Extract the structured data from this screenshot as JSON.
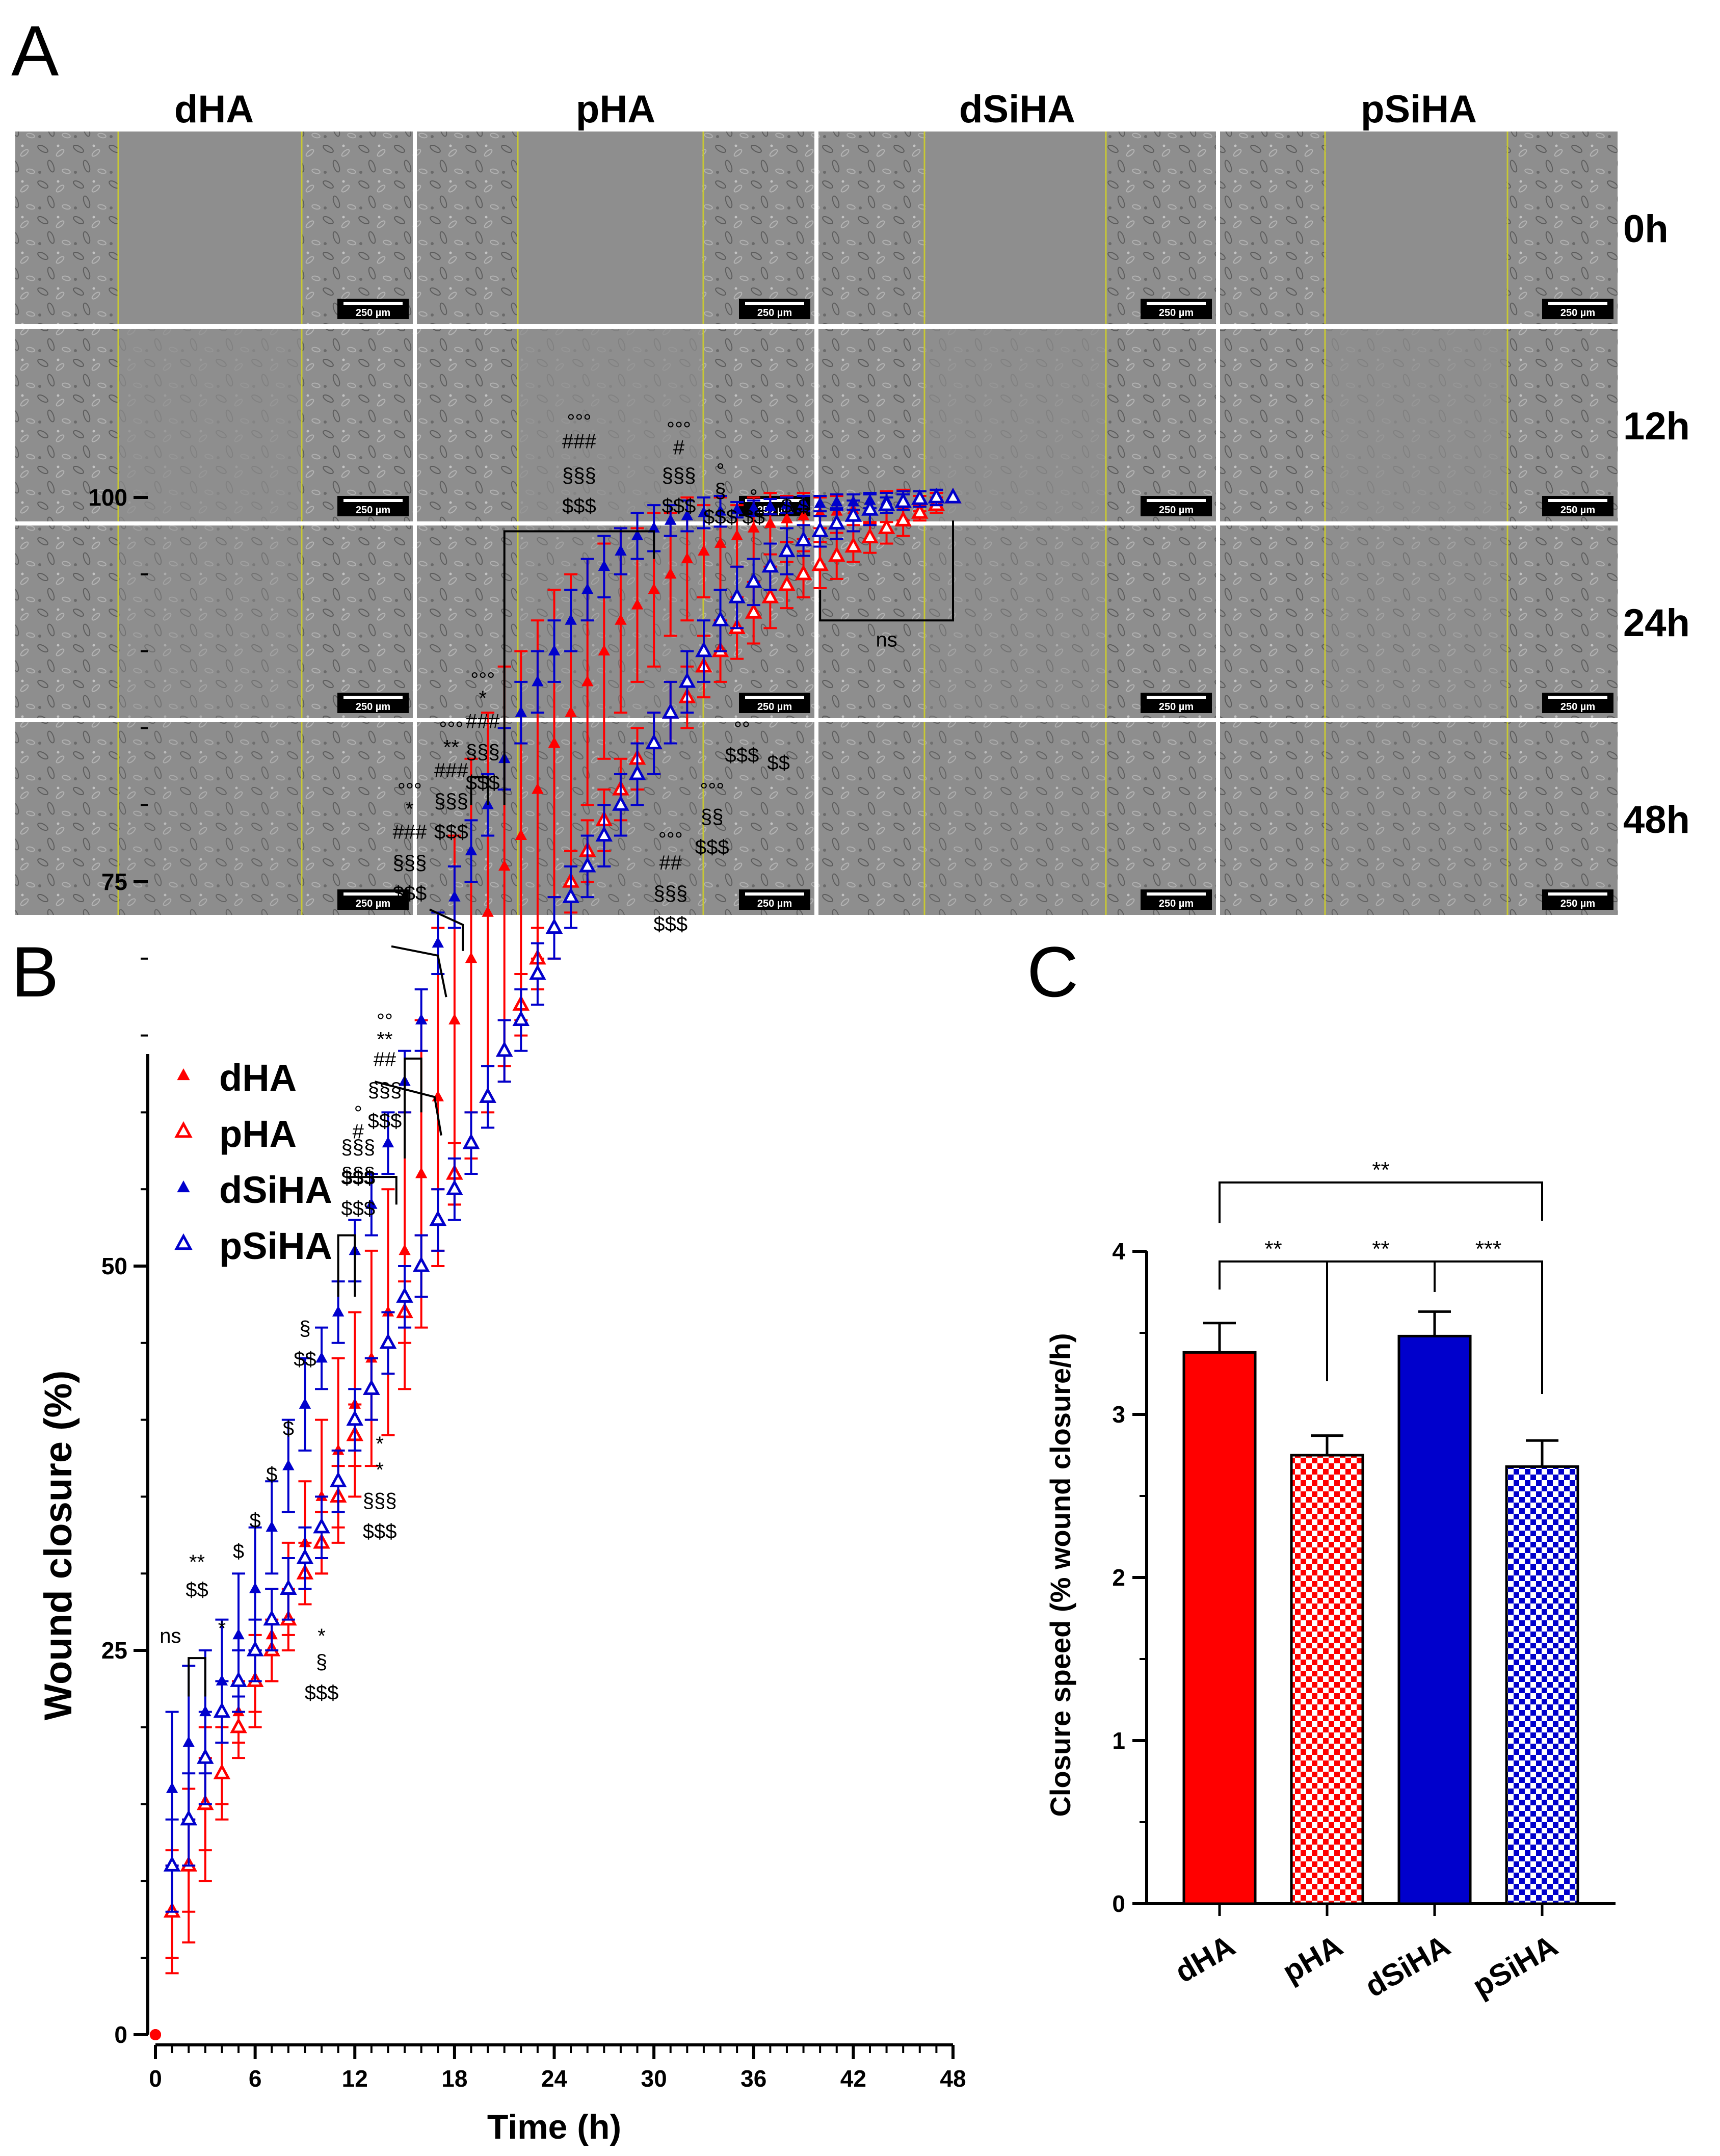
{
  "panel_a": {
    "label": "A",
    "columns": [
      "dHA",
      "pHA",
      "dSiHA",
      "pSiHA"
    ],
    "rows": [
      "0h",
      "12h",
      "24h",
      "48h"
    ],
    "scale_bar_label": "250 µm"
  },
  "panel_b": {
    "label": "B"
  },
  "panel_c": {
    "label": "C"
  },
  "colors": {
    "red": "#ff0000",
    "blue": "#0000cc"
  },
  "chart_data": [
    {
      "type": "scatter",
      "title": "",
      "xlabel": "Time (h)",
      "ylabel": "Wound closure (%)",
      "xlim": [
        0,
        48
      ],
      "ylim": [
        0,
        105
      ],
      "xticks": [
        "0",
        "6",
        "12",
        "18",
        "24",
        "30",
        "36",
        "42",
        "48"
      ],
      "yticks": [
        "0",
        "25",
        "50",
        "75",
        "100"
      ],
      "legend": [
        "dHA",
        "pHA",
        "dSiHA",
        "pSiHA"
      ],
      "legend_position": "top-left",
      "x": [
        0,
        1,
        2,
        3,
        4,
        5,
        6,
        7,
        8,
        9,
        10,
        11,
        12,
        13,
        14,
        15,
        16,
        17,
        18,
        19,
        20,
        21,
        22,
        23,
        24,
        25,
        26,
        27,
        28,
        29,
        30,
        31,
        32,
        33,
        34,
        35,
        36,
        37,
        38,
        39,
        40,
        41,
        42,
        43,
        44,
        45,
        46,
        47,
        48
      ],
      "series": [
        {
          "name": "dHA",
          "marker": "filled-triangle",
          "color": "#ff0000",
          "values": [
            0,
            8,
            11,
            15,
            17,
            21,
            23,
            26,
            29,
            32,
            35,
            38,
            41,
            44,
            47,
            51,
            56,
            61,
            66,
            70,
            73,
            76,
            78,
            81,
            84,
            86,
            88,
            90,
            92,
            93,
            94,
            95,
            96,
            96.5,
            97,
            97.5,
            98,
            98.3,
            98.6,
            98.8,
            99,
            99.1,
            99.2,
            99.3,
            99.4,
            99.5,
            99.6,
            99.8,
            100
          ],
          "errors": [
            0,
            4,
            5,
            5,
            3,
            2,
            3,
            3,
            3,
            4,
            5,
            6,
            6,
            7,
            8,
            9,
            10,
            11,
            12,
            13,
            13,
            13,
            12,
            11,
            10,
            9,
            8,
            7,
            6,
            5,
            5,
            4,
            4,
            3,
            3,
            2,
            2,
            2,
            1.5,
            1.5,
            1,
            1,
            1,
            1,
            1,
            1,
            0.5,
            0.5,
            0
          ]
        },
        {
          "name": "pHA",
          "marker": "open-triangle",
          "color": "#ff0000",
          "values": [
            0,
            8,
            11,
            15,
            17,
            20,
            23,
            25,
            27,
            30,
            32,
            35,
            39,
            42,
            45,
            47,
            50,
            53,
            56,
            58,
            61,
            64,
            67,
            70,
            72,
            75,
            77,
            79,
            81,
            83,
            84,
            86,
            87,
            89,
            90,
            91.5,
            92.5,
            93.5,
            94.3,
            95,
            95.6,
            96.2,
            96.8,
            97.4,
            98,
            98.5,
            99,
            99.5,
            100
          ],
          "errors": [
            0,
            3,
            3,
            3,
            2,
            2,
            2,
            2,
            2,
            2,
            2,
            2,
            2,
            2,
            2,
            2,
            2,
            2,
            2,
            2,
            2,
            2,
            2,
            2,
            2,
            2,
            2,
            2,
            2,
            2,
            2,
            2,
            2,
            2,
            2,
            2,
            2,
            2,
            1.5,
            1.5,
            1.5,
            1.5,
            1,
            1,
            1,
            1,
            0.5,
            0.5,
            0
          ]
        },
        {
          "name": "dSiHA",
          "marker": "filled-triangle",
          "color": "#0000cc",
          "values": [
            0,
            16,
            19,
            21,
            23,
            26,
            29,
            33,
            37,
            41,
            44,
            47,
            51,
            54,
            58,
            62,
            66,
            71,
            74,
            77,
            80,
            83,
            86,
            88,
            90,
            92,
            94,
            95.5,
            96.5,
            97.5,
            98,
            98.5,
            98.8,
            99,
            99.1,
            99.2,
            99.3,
            99.4,
            99.5,
            99.6,
            99.6,
            99.7,
            99.7,
            99.8,
            99.8,
            99.9,
            99.9,
            100,
            100
          ],
          "errors": [
            0,
            5,
            5,
            4,
            4,
            4,
            4,
            3,
            3,
            3,
            2,
            2,
            2,
            2,
            2,
            2,
            2,
            2,
            2,
            2,
            2,
            2,
            2,
            2,
            2,
            2,
            2,
            2,
            1.5,
            1.5,
            1.5,
            1,
            1,
            1,
            1,
            0.5,
            0.5,
            0.5,
            0.5,
            0.5,
            0.5,
            0.5,
            0.5,
            0.5,
            0.5,
            0.5,
            0.5,
            0.5,
            0
          ]
        },
        {
          "name": "pSiHA",
          "marker": "open-triangle",
          "color": "#0000cc",
          "values": [
            0,
            11,
            14,
            18,
            21,
            23,
            25,
            27,
            29,
            31,
            33,
            36,
            40,
            42,
            45,
            48,
            50,
            53,
            55,
            58,
            61,
            64,
            66,
            69,
            72,
            74,
            76,
            78,
            80,
            82,
            84,
            86,
            88,
            90,
            92,
            93.5,
            94.5,
            95.5,
            96.5,
            97.2,
            97.8,
            98.3,
            98.8,
            99.2,
            99.5,
            99.7,
            99.9,
            100,
            100
          ],
          "errors": [
            0,
            3,
            3,
            3,
            2,
            2,
            2,
            2,
            2,
            2,
            2,
            2,
            2,
            2,
            2,
            2,
            2,
            2,
            2,
            2,
            2,
            2,
            2,
            2,
            2,
            2,
            2,
            2,
            2,
            2,
            2,
            2,
            2,
            2,
            2,
            2,
            1.5,
            1.5,
            1.5,
            1,
            1,
            1,
            1,
            1,
            0.5,
            0.5,
            0.5,
            0.5,
            0
          ]
        }
      ],
      "annotations": [
        {
          "x": 0.9,
          "y": 25.5,
          "text": "ns"
        },
        {
          "x": 2.5,
          "y": 28.5,
          "text": "$$"
        },
        {
          "x": 2.5,
          "y": 30.3,
          "text": "**"
        },
        {
          "x": 4.0,
          "y": 26.0,
          "text": "*"
        },
        {
          "x": 5.0,
          "y": 31.0,
          "text": "$"
        },
        {
          "x": 6.0,
          "y": 33.0,
          "text": "$"
        },
        {
          "x": 7.0,
          "y": 36.0,
          "text": "$"
        },
        {
          "x": 8.0,
          "y": 39.0,
          "text": "$"
        },
        {
          "x": 9.0,
          "y": 43.5,
          "text": "$$"
        },
        {
          "x": 9.0,
          "y": 45.5,
          "text": "§"
        },
        {
          "x": 10.0,
          "y": 25.5,
          "text": "*"
        },
        {
          "x": 10.0,
          "y": 23.8,
          "text": "§"
        },
        {
          "x": 10.0,
          "y": 21.8,
          "text": "$$$"
        },
        {
          "x": 13.5,
          "y": 38.0,
          "text": "*"
        },
        {
          "x": 13.5,
          "y": 36.3,
          "text": "*"
        },
        {
          "x": 13.5,
          "y": 34.3,
          "text": "§§§"
        },
        {
          "x": 13.5,
          "y": 32.3,
          "text": "$$$"
        },
        {
          "x": 12.2,
          "y": 55.5,
          "text": "§§§"
        },
        {
          "x": 12.2,
          "y": 53.3,
          "text": "$$$"
        },
        {
          "x": 12.2,
          "y": 59.5,
          "text": "°"
        },
        {
          "x": 12.2,
          "y": 58.3,
          "text": "#"
        },
        {
          "x": 12.2,
          "y": 57.3,
          "text": "§§§"
        },
        {
          "x": 12.2,
          "y": 55.3,
          "text": "$$$"
        },
        {
          "x": 13.8,
          "y": 65.5,
          "text": "°°"
        },
        {
          "x": 13.8,
          "y": 64.3,
          "text": "**"
        },
        {
          "x": 13.8,
          "y": 63.0,
          "text": "##"
        },
        {
          "x": 13.8,
          "y": 61.0,
          "text": "§§§"
        },
        {
          "x": 13.8,
          "y": 59.0,
          "text": "$$$"
        },
        {
          "x": 15.3,
          "y": 80.5,
          "text": "°°°"
        },
        {
          "x": 15.3,
          "y": 79.3,
          "text": "*"
        },
        {
          "x": 15.3,
          "y": 77.8,
          "text": "###"
        },
        {
          "x": 15.3,
          "y": 75.8,
          "text": "§§§"
        },
        {
          "x": 15.3,
          "y": 73.8,
          "text": "$$$"
        },
        {
          "x": 17.8,
          "y": 84.5,
          "text": "°°°"
        },
        {
          "x": 17.8,
          "y": 83.3,
          "text": "**"
        },
        {
          "x": 17.8,
          "y": 81.8,
          "text": "###"
        },
        {
          "x": 17.8,
          "y": 79.8,
          "text": "§§§"
        },
        {
          "x": 17.8,
          "y": 77.8,
          "text": "$$$"
        },
        {
          "x": 19.7,
          "y": 87.7,
          "text": "°°°"
        },
        {
          "x": 19.7,
          "y": 86.5,
          "text": "*"
        },
        {
          "x": 19.7,
          "y": 85.0,
          "text": "###"
        },
        {
          "x": 19.7,
          "y": 83.0,
          "text": "§§§"
        },
        {
          "x": 19.7,
          "y": 81.0,
          "text": "$$$"
        },
        {
          "x": 25.5,
          "y": 104.5,
          "text": "°°°"
        },
        {
          "x": 25.5,
          "y": 103.2,
          "text": "###"
        },
        {
          "x": 25.5,
          "y": 101.0,
          "text": "§§§"
        },
        {
          "x": 25.5,
          "y": 99.0,
          "text": "$$$"
        },
        {
          "x": 31.5,
          "y": 104.0,
          "text": "°°°"
        },
        {
          "x": 31.5,
          "y": 102.8,
          "text": "#"
        },
        {
          "x": 31.5,
          "y": 101.0,
          "text": "§§§"
        },
        {
          "x": 31.5,
          "y": 99.0,
          "text": "$$$"
        },
        {
          "x": 34.0,
          "y": 101.3,
          "text": "°"
        },
        {
          "x": 34.0,
          "y": 100.0,
          "text": "§"
        },
        {
          "x": 34.0,
          "y": 98.3,
          "text": "$$$"
        },
        {
          "x": 36.0,
          "y": 98.3,
          "text": "$$"
        },
        {
          "x": 36.0,
          "y": 99.6,
          "text": "°"
        },
        {
          "x": 38.5,
          "y": 99.0,
          "text": "$ $"
        },
        {
          "x": 37.5,
          "y": 82.3,
          "text": "$$"
        },
        {
          "x": 35.3,
          "y": 84.5,
          "text": "°°"
        },
        {
          "x": 35.3,
          "y": 82.8,
          "text": "$$$"
        },
        {
          "x": 33.5,
          "y": 80.5,
          "text": "°°°"
        },
        {
          "x": 33.5,
          "y": 78.8,
          "text": "§§"
        },
        {
          "x": 33.5,
          "y": 76.8,
          "text": "$$$"
        },
        {
          "x": 31.0,
          "y": 77.3,
          "text": "°°°"
        },
        {
          "x": 31.0,
          "y": 75.8,
          "text": "##"
        },
        {
          "x": 31.0,
          "y": 73.8,
          "text": "§§§"
        },
        {
          "x": 31.0,
          "y": 71.8,
          "text": "$$$"
        },
        {
          "x": 44.0,
          "y": 90.3,
          "text": "ns"
        }
      ]
    },
    {
      "type": "bar",
      "title": "",
      "xlabel": "",
      "ylabel": "Closure speed (% wound closure/h)",
      "categories": [
        "dHA",
        "pHA",
        "dSiHA",
        "pSiHA"
      ],
      "values": [
        3.38,
        2.75,
        3.48,
        2.68
      ],
      "errors": [
        0.18,
        0.12,
        0.15,
        0.16
      ],
      "fills": [
        "solid",
        "checker",
        "solid",
        "checker"
      ],
      "colors": [
        "#ff0000",
        "#ff0000",
        "#0000cc",
        "#0000cc"
      ],
      "ylim": [
        0,
        4
      ],
      "yticks": [
        "0",
        "1",
        "2",
        "3",
        "4"
      ],
      "significance": [
        {
          "from": 0,
          "to": 1,
          "label": "**"
        },
        {
          "from": 1,
          "to": 2,
          "label": "**"
        },
        {
          "from": 2,
          "to": 3,
          "label": "***"
        },
        {
          "from": 0,
          "to": 3,
          "label": "**"
        }
      ]
    }
  ]
}
